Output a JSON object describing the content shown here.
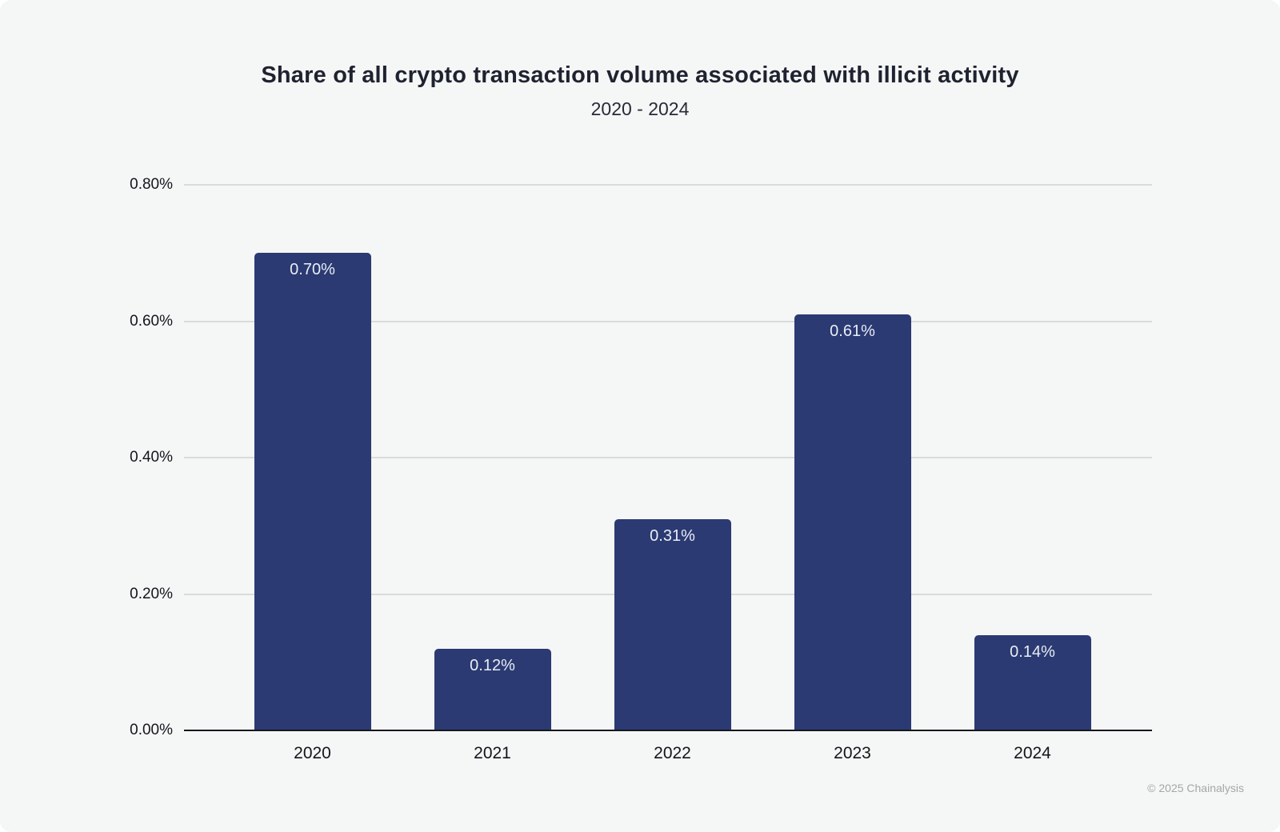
{
  "chart_data": {
    "type": "bar",
    "title": "Share of all crypto transaction volume associated with illicit activity",
    "subtitle": "2020 - 2024",
    "categories": [
      "2020",
      "2021",
      "2022",
      "2023",
      "2024"
    ],
    "values": [
      0.7,
      0.12,
      0.31,
      0.61,
      0.14
    ],
    "value_labels": [
      "0.70%",
      "0.12%",
      "0.31%",
      "0.61%",
      "0.14%"
    ],
    "xlabel": "",
    "ylabel": "",
    "ylim": [
      0,
      0.8
    ],
    "yticks": [
      0.0,
      0.2,
      0.4,
      0.6,
      0.8
    ],
    "ytick_labels": [
      "0.00%",
      "0.20%",
      "0.40%",
      "0.60%",
      "0.80%"
    ],
    "grid": true,
    "legend": false,
    "bar_color": "#2b3a72",
    "background_color": "#f5f6f6",
    "gridline_color": "#dbdbdb",
    "axis_color": "#17171c"
  },
  "footer": {
    "credit": "© 2025 Chainalysis"
  }
}
